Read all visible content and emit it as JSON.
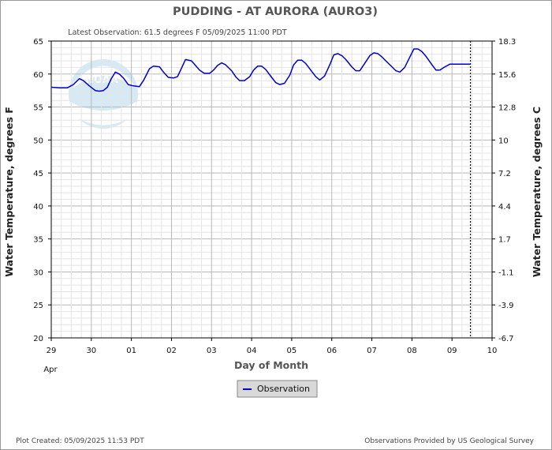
{
  "header": {
    "title": "PUDDING - AT AURORA  (AURO3)",
    "latest_observation": "Latest Observation: 61.5 degrees F 05/09/2025 11:00 PDT"
  },
  "footer": {
    "plot_created": "Plot Created: 05/09/2025 11:53 PDT",
    "provider": "Observations Provided by US Geological Survey"
  },
  "logo": {
    "text": "NOAA",
    "color": "#6fb4d9"
  },
  "legend": {
    "observation_label": "Observation"
  },
  "colors": {
    "series": "#0000cc",
    "grid": "#c8c8c8",
    "axis": "#000000",
    "legend_bg": "#d8d8d8"
  },
  "chart_data": {
    "type": "line",
    "title": "PUDDING - AT AURORA  (AURO3)",
    "xlabel": "Day of Month",
    "x_month_label": "Apr",
    "ylabel": "Water Temperature, degrees F",
    "y2label": "Water Temperature, degrees C",
    "xlim": [
      0,
      11
    ],
    "ylim": [
      20,
      65
    ],
    "grid": true,
    "legend_placement": "bottom-center",
    "x_ticks": [
      {
        "x": 0,
        "label": "29"
      },
      {
        "x": 1,
        "label": "30"
      },
      {
        "x": 2,
        "label": "01"
      },
      {
        "x": 3,
        "label": "02"
      },
      {
        "x": 4,
        "label": "03"
      },
      {
        "x": 5,
        "label": "04"
      },
      {
        "x": 6,
        "label": "05"
      },
      {
        "x": 7,
        "label": "06"
      },
      {
        "x": 8,
        "label": "07"
      },
      {
        "x": 9,
        "label": "08"
      },
      {
        "x": 10,
        "label": "09"
      },
      {
        "x": 11,
        "label": "10"
      }
    ],
    "y_ticks": [
      65,
      60,
      55,
      50,
      45,
      40,
      35,
      30,
      25,
      20
    ],
    "y2_ticks": [
      {
        "f": 65,
        "label": "18.3"
      },
      {
        "f": 60,
        "label": "15.6"
      },
      {
        "f": 55,
        "label": "12.8"
      },
      {
        "f": 50,
        "label": "10"
      },
      {
        "f": 45,
        "label": "7.2"
      },
      {
        "f": 40,
        "label": "4.4"
      },
      {
        "f": 35,
        "label": "1.7"
      },
      {
        "f": 30,
        "label": "-1.1"
      },
      {
        "f": 25,
        "label": "-3.9"
      },
      {
        "f": 20,
        "label": "-6.7"
      }
    ],
    "latest_x": 10.46,
    "series": [
      {
        "name": "Observation",
        "x": [
          0.0,
          0.2,
          0.4,
          0.55,
          0.7,
          0.8,
          0.95,
          1.1,
          1.2,
          1.3,
          1.4,
          1.5,
          1.6,
          1.7,
          1.8,
          1.92,
          2.05,
          2.2,
          2.3,
          2.45,
          2.55,
          2.7,
          2.8,
          2.92,
          3.05,
          3.15,
          3.25,
          3.35,
          3.5,
          3.6,
          3.7,
          3.82,
          3.95,
          4.05,
          4.15,
          4.25,
          4.35,
          4.5,
          4.6,
          4.7,
          4.82,
          4.95,
          5.05,
          5.15,
          5.25,
          5.35,
          5.5,
          5.6,
          5.7,
          5.82,
          5.95,
          6.05,
          6.15,
          6.25,
          6.35,
          6.5,
          6.6,
          6.7,
          6.82,
          6.95,
          7.05,
          7.15,
          7.25,
          7.35,
          7.5,
          7.6,
          7.7,
          7.82,
          7.95,
          8.05,
          8.15,
          8.25,
          8.35,
          8.5,
          8.6,
          8.7,
          8.82,
          8.95,
          9.05,
          9.15,
          9.25,
          9.35,
          9.5,
          9.6,
          9.7,
          9.8,
          9.95,
          10.05,
          10.15,
          10.25,
          10.35,
          10.46
        ],
        "values": [
          58.0,
          57.9,
          57.9,
          58.4,
          59.3,
          59.0,
          58.2,
          57.5,
          57.4,
          57.5,
          58.0,
          59.3,
          60.3,
          60.0,
          59.4,
          58.4,
          58.2,
          58.1,
          59.0,
          60.8,
          61.2,
          61.1,
          60.3,
          59.5,
          59.4,
          59.6,
          60.9,
          62.2,
          62.0,
          61.3,
          60.6,
          60.1,
          60.1,
          60.6,
          61.3,
          61.7,
          61.4,
          60.5,
          59.6,
          59.0,
          59.0,
          59.6,
          60.6,
          61.2,
          61.2,
          60.7,
          59.5,
          58.7,
          58.4,
          58.6,
          59.8,
          61.4,
          62.1,
          62.1,
          61.6,
          60.4,
          59.6,
          59.1,
          59.7,
          61.4,
          62.9,
          63.1,
          62.8,
          62.2,
          61.1,
          60.5,
          60.5,
          61.6,
          62.8,
          63.2,
          63.1,
          62.6,
          62.0,
          61.1,
          60.5,
          60.3,
          61.0,
          62.6,
          63.8,
          63.8,
          63.4,
          62.7,
          61.4,
          60.6,
          60.6,
          61.0,
          61.5,
          61.5,
          61.5,
          61.5,
          61.5,
          61.5
        ]
      }
    ]
  }
}
